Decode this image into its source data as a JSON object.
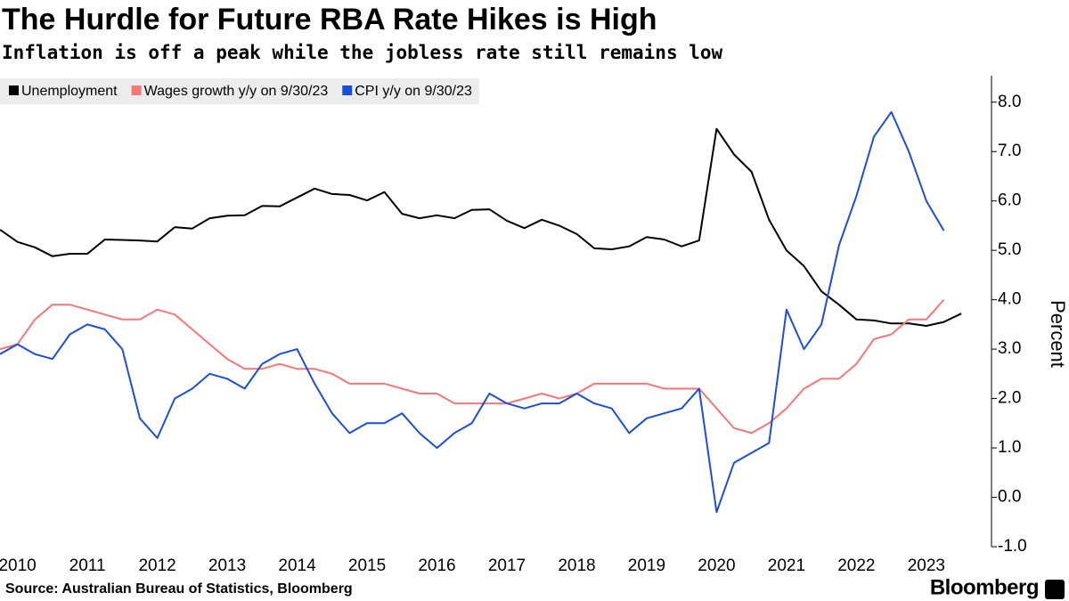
{
  "chart_data": {
    "type": "line",
    "title": "The Hurdle for Future RBA Rate Hikes is High",
    "subtitle": "Inflation is off a peak while the jobless rate still remains low",
    "y_label": "Percent",
    "source": "Source: Australian Bureau of Statistics, Bloomberg",
    "brand": "Bloomberg",
    "legend": "top-left",
    "grid": false,
    "x": [
      2010.25,
      2010.5,
      2010.75,
      2011,
      2011.25,
      2011.5,
      2011.75,
      2012,
      2012.25,
      2012.5,
      2012.75,
      2013,
      2013.25,
      2013.5,
      2013.75,
      2014,
      2014.25,
      2014.5,
      2014.75,
      2015,
      2015.25,
      2015.5,
      2015.75,
      2016,
      2016.25,
      2016.5,
      2016.75,
      2017,
      2017.25,
      2017.5,
      2017.75,
      2018,
      2018.25,
      2018.5,
      2018.75,
      2019,
      2019.25,
      2019.5,
      2019.75,
      2020,
      2020.25,
      2020.5,
      2020.75,
      2021,
      2021.25,
      2021.5,
      2021.75,
      2022,
      2022.25,
      2022.5,
      2022.75,
      2023,
      2023.25,
      2023.5,
      2023.75,
      2024
    ],
    "xlim": [
      2010.25,
      2024.33
    ],
    "xticks": [
      {
        "value": 2010.5,
        "label": "2010"
      },
      {
        "value": 2011.5,
        "label": "2011"
      },
      {
        "value": 2012.5,
        "label": "2012"
      },
      {
        "value": 2013.5,
        "label": "2013"
      },
      {
        "value": 2014.5,
        "label": "2014"
      },
      {
        "value": 2015.5,
        "label": "2015"
      },
      {
        "value": 2016.5,
        "label": "2016"
      },
      {
        "value": 2017.5,
        "label": "2017"
      },
      {
        "value": 2018.5,
        "label": "2018"
      },
      {
        "value": 2019.5,
        "label": "2019"
      },
      {
        "value": 2020.5,
        "label": "2020"
      },
      {
        "value": 2021.5,
        "label": "2021"
      },
      {
        "value": 2022.5,
        "label": "2022"
      },
      {
        "value": 2023.5,
        "label": "2023"
      }
    ],
    "ylim": [
      -1,
      8.5
    ],
    "yticks": [
      {
        "value": -1,
        "label": "-1.0"
      },
      {
        "value": 0,
        "label": "0.0"
      },
      {
        "value": 1,
        "label": "1.0"
      },
      {
        "value": 2,
        "label": "2.0"
      },
      {
        "value": 3,
        "label": "3.0"
      },
      {
        "value": 4,
        "label": "4.0"
      },
      {
        "value": 5,
        "label": "5.0"
      },
      {
        "value": 6,
        "label": "6.0"
      },
      {
        "value": 7,
        "label": "7.0"
      },
      {
        "value": 8,
        "label": "8.0"
      }
    ],
    "series": [
      {
        "name": "Unemployment",
        "color": "#000000",
        "values": [
          5.42,
          5.17,
          5.06,
          4.88,
          4.93,
          4.93,
          5.22,
          5.21,
          5.2,
          5.18,
          5.47,
          5.44,
          5.65,
          5.7,
          5.71,
          5.9,
          5.89,
          6.07,
          6.25,
          6.14,
          6.12,
          6.01,
          6.18,
          5.74,
          5.65,
          5.71,
          5.65,
          5.82,
          5.83,
          5.6,
          5.45,
          5.62,
          5.5,
          5.33,
          5.04,
          5.02,
          5.08,
          5.27,
          5.22,
          5.08,
          5.2,
          7.46,
          6.94,
          6.59,
          5.62,
          5.0,
          4.68,
          4.17,
          3.9,
          3.6,
          3.58,
          3.52,
          3.52,
          3.47,
          3.55,
          3.72
        ]
      },
      {
        "name": "Wages growth y/y on 9/30/23",
        "color": "#f4777a",
        "values": [
          3.0,
          3.1,
          3.6,
          3.9,
          3.9,
          3.8,
          3.7,
          3.6,
          3.6,
          3.8,
          3.7,
          3.4,
          3.1,
          2.8,
          2.6,
          2.6,
          2.7,
          2.6,
          2.6,
          2.5,
          2.3,
          2.3,
          2.3,
          2.2,
          2.1,
          2.1,
          1.9,
          1.9,
          1.9,
          1.9,
          2.0,
          2.1,
          2.0,
          2.1,
          2.3,
          2.3,
          2.3,
          2.3,
          2.2,
          2.2,
          2.2,
          1.8,
          1.4,
          1.3,
          1.5,
          1.8,
          2.2,
          2.4,
          2.4,
          2.7,
          3.2,
          3.3,
          3.6,
          3.6,
          4.0,
          null
        ]
      },
      {
        "name": "CPI y/y on 9/30/23",
        "color": "#1c4ed8",
        "values": [
          2.9,
          3.1,
          2.9,
          2.8,
          3.3,
          3.5,
          3.4,
          3.0,
          1.6,
          1.2,
          2.0,
          2.2,
          2.5,
          2.4,
          2.2,
          2.7,
          2.9,
          3.0,
          2.3,
          1.7,
          1.3,
          1.5,
          1.5,
          1.7,
          1.3,
          1.0,
          1.3,
          1.5,
          2.1,
          1.9,
          1.8,
          1.9,
          1.9,
          2.1,
          1.9,
          1.8,
          1.3,
          1.6,
          1.7,
          1.8,
          2.2,
          -0.3,
          0.7,
          0.9,
          1.1,
          3.8,
          3.0,
          3.5,
          5.1,
          6.1,
          7.3,
          7.8,
          7.0,
          6.0,
          5.4,
          null
        ]
      }
    ]
  }
}
